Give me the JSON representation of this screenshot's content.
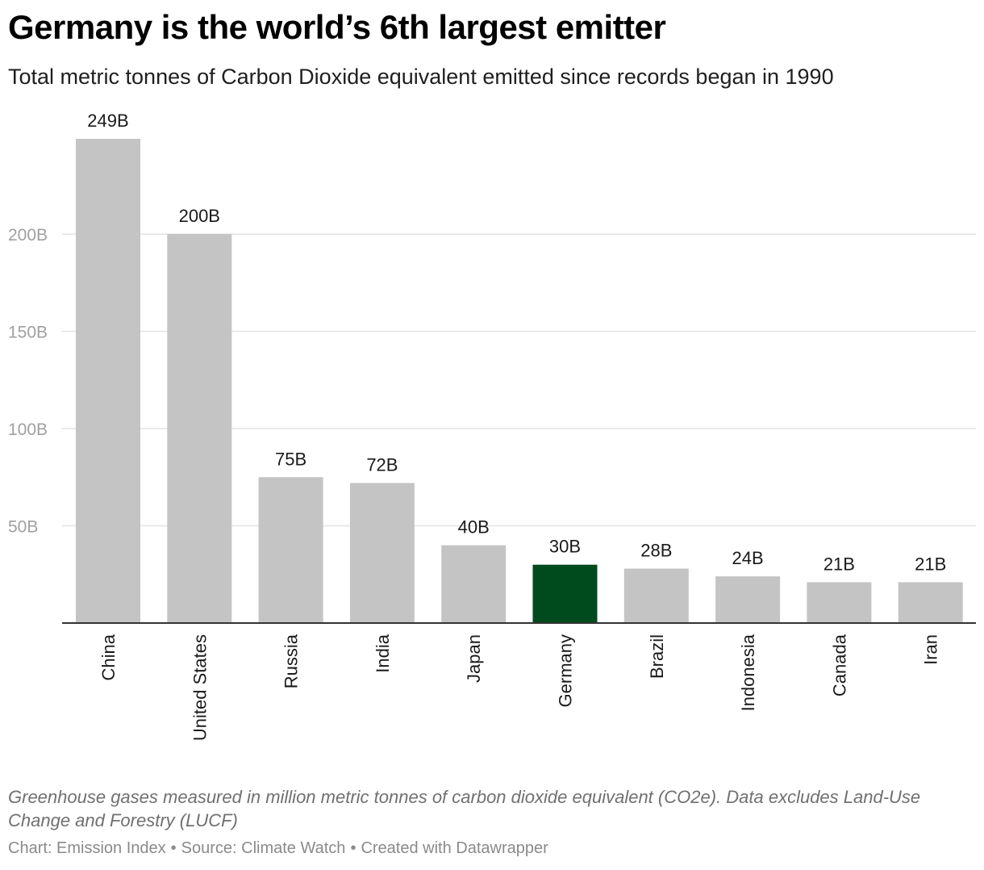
{
  "header": {
    "title": "Germany is the world’s 6th largest emitter",
    "subtitle": "Total metric tonnes of Carbon Dioxide equivalent emitted since records began in 1990"
  },
  "chart_data": {
    "type": "bar",
    "title": "Germany is the world’s 6th largest emitter",
    "subtitle": "Total metric tonnes of Carbon Dioxide equivalent emitted since records began in 1990",
    "xlabel": "",
    "ylabel": "",
    "categories": [
      "China",
      "United States",
      "Russia",
      "India",
      "Japan",
      "Germany",
      "Brazil",
      "Indonesia",
      "Canada",
      "Iran"
    ],
    "values": [
      249,
      200,
      75,
      72,
      40,
      30,
      28,
      24,
      21,
      21
    ],
    "value_labels": [
      "249B",
      "200B",
      "75B",
      "72B",
      "40B",
      "30B",
      "28B",
      "24B",
      "21B",
      "21B"
    ],
    "unit": "B",
    "ylim": [
      0,
      249
    ],
    "yticks": [
      50,
      100,
      150,
      200
    ],
    "ytick_labels": [
      "50B",
      "100B",
      "150B",
      "200B"
    ],
    "grid": true,
    "legend": "none",
    "highlight_category": "Germany",
    "colors": {
      "bar": "#c4c4c4",
      "highlight": "#004b1e",
      "grid": "#e3e3e3",
      "baseline": "#333333",
      "tick_label": "#a0a0a0",
      "value_label": "#1a1a1a",
      "category_label": "#1a1a1a"
    }
  },
  "footer": {
    "notes": "Greenhouse gases measured in million metric tonnes of carbon dioxide equivalent (CO2e). Data excludes Land-Use Change and Forestry (LUCF)",
    "credit_chart": "Chart: Emission Index",
    "credit_source": "Source: Climate Watch",
    "credit_tool": "Created with Datawrapper",
    "separator": "•"
  }
}
